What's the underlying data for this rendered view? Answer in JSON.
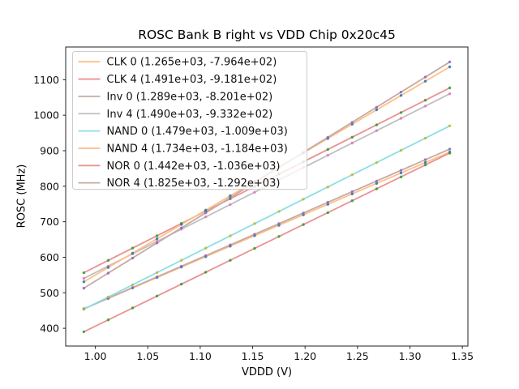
{
  "figure": {
    "title": "ROSC Bank B right vs VDD Chip 0x20c45",
    "xlabel": "VDDD (V)",
    "ylabel": "ROSC (MHz)"
  },
  "chart_data": {
    "type": "scatter",
    "title": "ROSC Bank B right vs VDD Chip 0x20c45",
    "xlabel": "VDDD (V)",
    "ylabel": "ROSC (MHz)",
    "xlim": [
      0.9717,
      1.3553
    ],
    "ylim": [
      350,
      1192
    ],
    "xticks": [
      1.0,
      1.05,
      1.1,
      1.15,
      1.2,
      1.25,
      1.3,
      1.35
    ],
    "yticks": [
      400,
      500,
      600,
      700,
      800,
      900,
      1000,
      1100
    ],
    "grid": false,
    "legend_position": "upper left",
    "x": [
      0.989,
      1.0123,
      1.0355,
      1.0588,
      1.0821,
      1.1053,
      1.1286,
      1.1519,
      1.1751,
      1.1984,
      1.2217,
      1.2449,
      1.2682,
      1.2915,
      1.3147,
      1.338
    ],
    "series": [
      {
        "name": "CLK 0",
        "legend_label": "CLK 0 (1.265e+03, -7.964e+02)",
        "fit_slope": 1265.0,
        "fit_intercept": -796.4,
        "line_color": "#ffbf86",
        "marker_color": "#1f77b4",
        "y": [
          454.7,
          484.2,
          513.5,
          543.0,
          572.5,
          601.8,
          631.3,
          660.8,
          690.1,
          719.6,
          749.1,
          778.4,
          807.9,
          837.3,
          866.7,
          896.2
        ]
      },
      {
        "name": "CLK 4",
        "legend_label": "CLK 4 (1.491e+03, -9.181e+02)",
        "fit_slope": 1491.0,
        "fit_intercept": -918.1,
        "line_color": "#ea9393",
        "marker_color": "#2ca02c",
        "y": [
          556.5,
          591.2,
          625.8,
          660.6,
          695.3,
          729.9,
          764.6,
          799.4,
          834.0,
          868.7,
          903.5,
          938.0,
          972.8,
          1007.5,
          1042.1,
          1076.9
        ]
      },
      {
        "name": "Inv 0",
        "legend_label": "Inv 0 (1.289e+03, -8.201e+02)",
        "fit_slope": 1289.0,
        "fit_intercept": -820.1,
        "line_color": "#c5aaa5",
        "marker_color": "#9467bd",
        "y": [
          454.7,
          484.8,
          514.7,
          544.7,
          574.7,
          604.6,
          634.7,
          664.7,
          694.6,
          724.6,
          754.7,
          784.6,
          814.6,
          844.6,
          874.6,
          904.6
        ]
      },
      {
        "name": "Inv 4",
        "legend_label": "Inv 4 (1.490e+03, -9.332e+02)",
        "fit_slope": 1490.0,
        "fit_intercept": -933.2,
        "line_color": "#bfbfbf",
        "marker_color": "#e377c2",
        "y": [
          540.4,
          575.1,
          609.7,
          644.4,
          679.1,
          713.7,
          748.4,
          783.1,
          817.7,
          852.4,
          887.1,
          921.7,
          956.4,
          991.1,
          1025.7,
          1060.4
        ]
      },
      {
        "name": "NAND 0",
        "legend_label": "NAND 0 (1.479e+03, -1.009e+03)",
        "fit_slope": 1479.0,
        "fit_intercept": -1009.0,
        "line_color": "#8bdee7",
        "marker_color": "#bcbd22",
        "y": [
          453.7,
          488.2,
          522.5,
          557.0,
          591.4,
          625.7,
          660.2,
          694.7,
          729.0,
          763.4,
          797.9,
          832.2,
          866.7,
          901.1,
          935.4,
          969.9
        ]
      },
      {
        "name": "NAND 4",
        "legend_label": "NAND 4 (1.734e+03, -1.184e+03)",
        "fit_slope": 1734.0,
        "fit_intercept": -1184.0,
        "line_color": "#ffbf86",
        "marker_color": "#1f77b4",
        "y": [
          530.9,
          571.3,
          611.6,
          652.0,
          692.4,
          732.6,
          773.0,
          813.4,
          853.6,
          894.0,
          934.4,
          974.7,
          1015.1,
          1055.5,
          1095.7,
          1136.1
        ]
      },
      {
        "name": "NOR 0",
        "legend_label": "NOR 0 (1.442e+03, -1.036e+03)",
        "fit_slope": 1442.0,
        "fit_intercept": -1036.0,
        "line_color": "#ea9393",
        "marker_color": "#2ca02c",
        "y": [
          390.1,
          423.7,
          457.2,
          490.8,
          524.4,
          557.8,
          591.4,
          625.0,
          658.5,
          692.1,
          725.7,
          759.1,
          792.7,
          826.3,
          859.8,
          893.4
        ]
      },
      {
        "name": "NOR 4",
        "legend_label": "NOR 4 (1.825e+03, -1.292e+03)",
        "fit_slope": 1825.0,
        "fit_intercept": -1292.0,
        "line_color": "#c5aaa5",
        "marker_color": "#9467bd",
        "y": [
          512.9,
          555.4,
          597.8,
          640.3,
          682.8,
          725.2,
          767.7,
          810.2,
          852.6,
          895.1,
          937.6,
          979.9,
          1022.5,
          1065.0,
          1107.3,
          1149.9
        ]
      }
    ],
    "legend_frame_color": "#cccccc",
    "spine_color": "#222222"
  }
}
